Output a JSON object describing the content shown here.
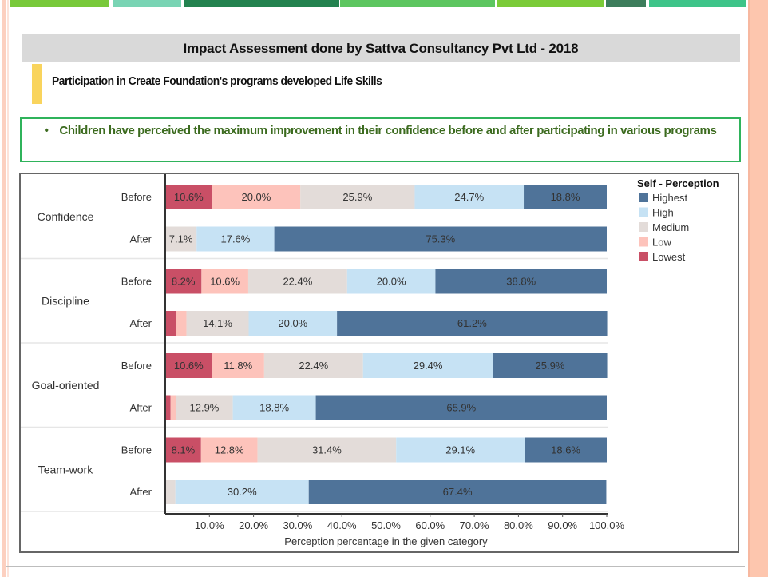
{
  "slide": {
    "header_stripe_colors": [
      "#78c93a",
      "#79d4b4",
      "#23824f",
      "#5dc660",
      "#7bcb38",
      "#3d7d5c",
      "#3ec489"
    ],
    "title": "Impact Assessment done by Sattva Consultancy Pvt Ltd - 2018",
    "subtitle": "Participation in Create Foundation's programs developed Life Skills",
    "callout": {
      "bullet": "•",
      "text": "Children have perceived the maximum improvement in their confidence before and after participating in various programs"
    }
  },
  "chart_data": {
    "type": "bar",
    "orientation": "horizontal",
    "stacked": true,
    "title": "",
    "xlabel": "Perception percentage in the given category",
    "ylabel": "",
    "xlim": [
      0,
      100
    ],
    "x_ticks": [
      "10.0%",
      "20.0%",
      "30.0%",
      "40.0%",
      "50.0%",
      "60.0%",
      "70.0%",
      "80.0%",
      "90.0%",
      "100.0%"
    ],
    "legend": {
      "title": "Self - Perception",
      "placement": "top-right",
      "entries": [
        {
          "name": "Highest",
          "color": "#4f7399"
        },
        {
          "name": "High",
          "color": "#c6e2f4"
        },
        {
          "name": "Medium",
          "color": "#e3dcd9"
        },
        {
          "name": "Low",
          "color": "#fdc3bb"
        },
        {
          "name": "Lowest",
          "color": "#c94f66"
        }
      ]
    },
    "series_order": [
      "Lowest",
      "Low",
      "Medium",
      "High",
      "Highest"
    ],
    "groups": [
      {
        "category": "Confidence",
        "rows": [
          {
            "label": "Before",
            "values": {
              "Lowest": 10.6,
              "Low": 20.0,
              "Medium": 25.9,
              "High": 24.7,
              "Highest": 18.8
            },
            "labels": {
              "Lowest": "10.6%",
              "Low": "20.0%",
              "Medium": "25.9%",
              "High": "24.7%",
              "Highest": "18.8%"
            }
          },
          {
            "label": "After",
            "values": {
              "Lowest": 0,
              "Low": 0,
              "Medium": 7.1,
              "High": 17.6,
              "Highest": 75.3
            },
            "labels": {
              "Medium": "7.1%",
              "High": "17.6%",
              "Highest": "75.3%"
            }
          }
        ]
      },
      {
        "category": "Discipline",
        "rows": [
          {
            "label": "Before",
            "values": {
              "Lowest": 8.2,
              "Low": 10.6,
              "Medium": 22.4,
              "High": 20.0,
              "Highest": 38.8
            },
            "labels": {
              "Lowest": "8.2%",
              "Low": "10.6%",
              "Medium": "22.4%",
              "High": "20.0%",
              "Highest": "38.8%"
            }
          },
          {
            "label": "After",
            "values": {
              "Lowest": 2.4,
              "Low": 2.4,
              "Medium": 14.1,
              "High": 20.0,
              "Highest": 61.2
            },
            "labels": {
              "Medium": "14.1%",
              "High": "20.0%",
              "Highest": "61.2%"
            }
          }
        ]
      },
      {
        "category": "Goal-oriented",
        "rows": [
          {
            "label": "Before",
            "values": {
              "Lowest": 10.6,
              "Low": 11.8,
              "Medium": 22.4,
              "High": 29.4,
              "Highest": 25.9
            },
            "labels": {
              "Lowest": "10.6%",
              "Low": "11.8%",
              "Medium": "22.4%",
              "High": "29.4%",
              "Highest": "25.9%"
            }
          },
          {
            "label": "After",
            "values": {
              "Lowest": 1.2,
              "Low": 1.2,
              "Medium": 12.9,
              "High": 18.8,
              "Highest": 65.9
            },
            "labels": {
              "Medium": "12.9%",
              "High": "18.8%",
              "Highest": "65.9%"
            }
          }
        ]
      },
      {
        "category": "Team-work",
        "rows": [
          {
            "label": "Before",
            "values": {
              "Lowest": 8.1,
              "Low": 12.8,
              "Medium": 31.4,
              "High": 29.1,
              "Highest": 18.6
            },
            "labels": {
              "Lowest": "8.1%",
              "Low": "12.8%",
              "Medium": "31.4%",
              "High": "29.1%",
              "Highest": "18.6%"
            }
          },
          {
            "label": "After",
            "values": {
              "Lowest": 0,
              "Low": 0,
              "Medium": 2.3,
              "High": 30.2,
              "Highest": 67.4
            },
            "labels": {
              "High": "30.2%",
              "Highest": "67.4%"
            }
          }
        ]
      }
    ]
  }
}
